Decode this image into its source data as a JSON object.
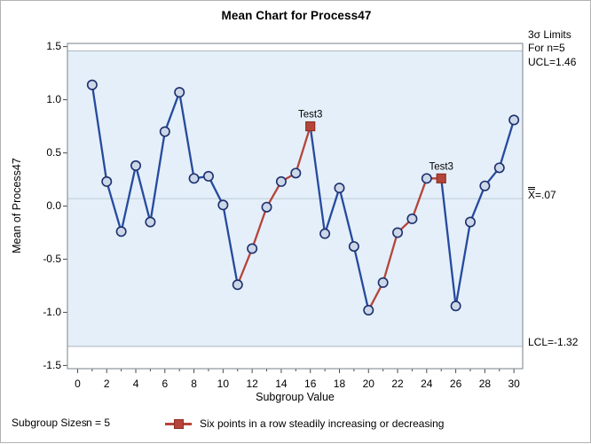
{
  "title": "Mean Chart for Process47",
  "y_axis_title": "Mean of Process47",
  "x_axis_title": "Subgroup Value",
  "annotations": {
    "sigma_line1": "3σ Limits",
    "sigma_line2": "For n=5",
    "ucl_label": "UCL=1.46",
    "xbar_symbol": "X",
    "xbar_value": "=.07",
    "lcl_label": "LCL=-1.32"
  },
  "footer": {
    "subgroup_sizes_label": "Subgroup Sizes",
    "n_label": "n = 5",
    "legend_text": "Six points in a row steadily increasing or decreasing"
  },
  "chart_data": {
    "type": "line",
    "title": "Mean Chart for Process47",
    "xlabel": "Subgroup Value",
    "ylabel": "Mean of Process47",
    "x": [
      1,
      2,
      3,
      4,
      5,
      6,
      7,
      8,
      9,
      10,
      11,
      12,
      13,
      14,
      15,
      16,
      17,
      18,
      19,
      20,
      21,
      22,
      23,
      24,
      25,
      26,
      27,
      28,
      29,
      30
    ],
    "values": [
      1.14,
      0.23,
      -0.24,
      0.38,
      -0.15,
      0.7,
      1.07,
      0.26,
      0.28,
      0.01,
      -0.74,
      -0.4,
      -0.01,
      0.23,
      0.31,
      0.75,
      -0.26,
      0.17,
      -0.38,
      -0.98,
      -0.72,
      -0.25,
      -0.12,
      0.26,
      0.26,
      -0.94,
      -0.15,
      0.19,
      0.36,
      0.81
    ],
    "ucl": 1.46,
    "center_line": 0.07,
    "lcl": -1.32,
    "sigma_rule": "3σ Limits For n=5",
    "xlim": [
      -0.7,
      30.6
    ],
    "ylim": [
      -1.53,
      1.53
    ],
    "x_major_ticks": [
      0,
      2,
      4,
      6,
      8,
      10,
      12,
      14,
      16,
      18,
      20,
      22,
      24,
      26,
      28,
      30
    ],
    "x_minor_ticks": [
      1,
      3,
      5,
      7,
      9,
      11,
      13,
      15,
      17,
      19,
      21,
      23,
      25,
      27,
      29
    ],
    "y_ticks": [
      1.5,
      1.0,
      0.5,
      0.0,
      -0.5,
      -1.0,
      -1.5
    ],
    "y_tick_labels": [
      "1.5",
      "1.0",
      "0.5",
      "0.0",
      "-0.5",
      "-1.0",
      "-1.5"
    ],
    "grid": false,
    "test_flag_points": [
      16,
      25
    ],
    "test_flag_label": "Test3",
    "red_segment_ranges": [
      [
        11,
        16
      ],
      [
        20,
        25
      ]
    ],
    "legend": {
      "position": "bottom",
      "entries": [
        "Six points in a row steadily increasing or decreasing"
      ]
    },
    "colors": {
      "series_line": "#264a9e",
      "flag_line": "#b5443a",
      "marker_fill": "#ccd7e8",
      "marker_stroke": "#1d2f6d",
      "flag_marker_fill": "#b5453a",
      "flag_marker_stroke": "#8f2f23",
      "band_fill": "#e4eff9",
      "limit_line": "#adb6bd",
      "center_line_color": "#c3d3de",
      "frame": "#8e969c",
      "tick": "#4a4a4a"
    }
  }
}
